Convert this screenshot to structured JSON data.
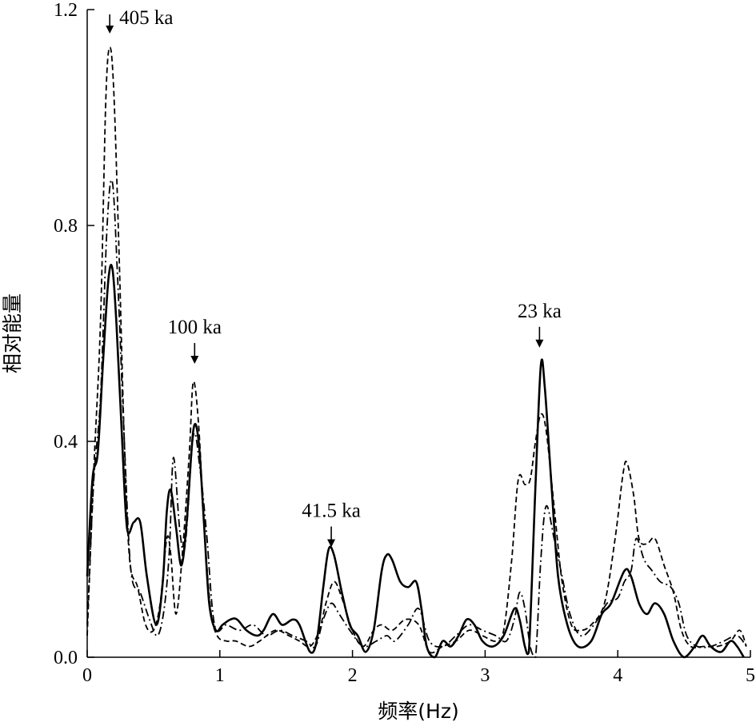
{
  "chart_data": {
    "type": "line",
    "title": "",
    "xlabel": "频率(Hz)",
    "ylabel": "相对能量",
    "xlim": [
      0,
      5
    ],
    "ylim": [
      0,
      1.2
    ],
    "x_ticks": [
      0,
      1,
      2,
      3,
      4,
      5
    ],
    "x_tick_labels": [
      "0",
      "1",
      "2",
      "3",
      "4",
      "5"
    ],
    "y_ticks": [
      0,
      0.4,
      0.8,
      1.2
    ],
    "y_tick_labels": [
      "0.0",
      "0.4",
      "0.8",
      "1.2"
    ],
    "grid": false,
    "legend": "none",
    "series": [
      {
        "style": "solid",
        "points": [
          [
            0,
            0.15
          ],
          [
            0.04,
            0.33
          ],
          [
            0.08,
            0.38
          ],
          [
            0.12,
            0.55
          ],
          [
            0.16,
            0.7
          ],
          [
            0.19,
            0.72
          ],
          [
            0.22,
            0.62
          ],
          [
            0.26,
            0.42
          ],
          [
            0.3,
            0.24
          ],
          [
            0.35,
            0.25
          ],
          [
            0.4,
            0.25
          ],
          [
            0.45,
            0.15
          ],
          [
            0.52,
            0.06
          ],
          [
            0.57,
            0.14
          ],
          [
            0.6,
            0.27
          ],
          [
            0.63,
            0.31
          ],
          [
            0.67,
            0.24
          ],
          [
            0.71,
            0.17
          ],
          [
            0.75,
            0.25
          ],
          [
            0.8,
            0.42
          ],
          [
            0.84,
            0.4
          ],
          [
            0.88,
            0.25
          ],
          [
            0.92,
            0.1
          ],
          [
            0.97,
            0.05
          ],
          [
            1.02,
            0.06
          ],
          [
            1.08,
            0.07
          ],
          [
            1.13,
            0.07
          ],
          [
            1.2,
            0.05
          ],
          [
            1.28,
            0.04
          ],
          [
            1.33,
            0.05
          ],
          [
            1.4,
            0.08
          ],
          [
            1.47,
            0.06
          ],
          [
            1.55,
            0.07
          ],
          [
            1.6,
            0.06
          ],
          [
            1.68,
            0.01
          ],
          [
            1.73,
            0.03
          ],
          [
            1.78,
            0.13
          ],
          [
            1.82,
            0.2
          ],
          [
            1.86,
            0.19
          ],
          [
            1.92,
            0.12
          ],
          [
            1.98,
            0.06
          ],
          [
            2.04,
            0.04
          ],
          [
            2.1,
            0.01
          ],
          [
            2.16,
            0.05
          ],
          [
            2.22,
            0.16
          ],
          [
            2.26,
            0.19
          ],
          [
            2.3,
            0.18
          ],
          [
            2.36,
            0.14
          ],
          [
            2.42,
            0.13
          ],
          [
            2.48,
            0.14
          ],
          [
            2.52,
            0.09
          ],
          [
            2.56,
            0.02
          ],
          [
            2.62,
            0.0
          ],
          [
            2.68,
            0.03
          ],
          [
            2.74,
            0.02
          ],
          [
            2.8,
            0.04
          ],
          [
            2.86,
            0.07
          ],
          [
            2.92,
            0.06
          ],
          [
            2.98,
            0.03
          ],
          [
            3.06,
            0.02
          ],
          [
            3.14,
            0.04
          ],
          [
            3.22,
            0.09
          ],
          [
            3.26,
            0.07
          ],
          [
            3.3,
            0.02
          ],
          [
            3.33,
            0.01
          ],
          [
            3.38,
            0.32
          ],
          [
            3.42,
            0.54
          ],
          [
            3.45,
            0.5
          ],
          [
            3.5,
            0.32
          ],
          [
            3.55,
            0.15
          ],
          [
            3.62,
            0.06
          ],
          [
            3.7,
            0.02
          ],
          [
            3.8,
            0.03
          ],
          [
            3.88,
            0.08
          ],
          [
            3.95,
            0.1
          ],
          [
            4.05,
            0.16
          ],
          [
            4.1,
            0.15
          ],
          [
            4.16,
            0.1
          ],
          [
            4.22,
            0.08
          ],
          [
            4.28,
            0.1
          ],
          [
            4.35,
            0.08
          ],
          [
            4.42,
            0.03
          ],
          [
            4.5,
            0.0
          ],
          [
            4.58,
            0.02
          ],
          [
            4.64,
            0.04
          ],
          [
            4.7,
            0.02
          ],
          [
            4.78,
            0.01
          ],
          [
            4.85,
            0.03
          ],
          [
            4.9,
            0.02
          ],
          [
            4.95,
            0.0
          ]
        ]
      },
      {
        "style": "dashed",
        "points": [
          [
            0,
            0.04
          ],
          [
            0.05,
            0.35
          ],
          [
            0.1,
            0.62
          ],
          [
            0.14,
            1.03
          ],
          [
            0.17,
            1.13
          ],
          [
            0.2,
            1.05
          ],
          [
            0.24,
            0.75
          ],
          [
            0.28,
            0.4
          ],
          [
            0.32,
            0.18
          ],
          [
            0.38,
            0.13
          ],
          [
            0.44,
            0.06
          ],
          [
            0.5,
            0.05
          ],
          [
            0.55,
            0.1
          ],
          [
            0.6,
            0.22
          ],
          [
            0.63,
            0.19
          ],
          [
            0.67,
            0.08
          ],
          [
            0.72,
            0.2
          ],
          [
            0.77,
            0.38
          ],
          [
            0.8,
            0.51
          ],
          [
            0.84,
            0.43
          ],
          [
            0.88,
            0.25
          ],
          [
            0.93,
            0.09
          ],
          [
            0.98,
            0.04
          ],
          [
            1.05,
            0.03
          ],
          [
            1.12,
            0.03
          ],
          [
            1.22,
            0.02
          ],
          [
            1.3,
            0.03
          ],
          [
            1.42,
            0.05
          ],
          [
            1.52,
            0.04
          ],
          [
            1.6,
            0.03
          ],
          [
            1.68,
            0.02
          ],
          [
            1.75,
            0.05
          ],
          [
            1.8,
            0.1
          ],
          [
            1.86,
            0.14
          ],
          [
            1.92,
            0.11
          ],
          [
            2.0,
            0.05
          ],
          [
            2.08,
            0.02
          ],
          [
            2.16,
            0.05
          ],
          [
            2.22,
            0.06
          ],
          [
            2.3,
            0.05
          ],
          [
            2.4,
            0.07
          ],
          [
            2.5,
            0.06
          ],
          [
            2.58,
            0.01
          ],
          [
            2.68,
            0.02
          ],
          [
            2.78,
            0.03
          ],
          [
            2.88,
            0.05
          ],
          [
            2.98,
            0.04
          ],
          [
            3.08,
            0.03
          ],
          [
            3.14,
            0.05
          ],
          [
            3.2,
            0.18
          ],
          [
            3.25,
            0.33
          ],
          [
            3.3,
            0.32
          ],
          [
            3.34,
            0.33
          ],
          [
            3.38,
            0.4
          ],
          [
            3.42,
            0.45
          ],
          [
            3.46,
            0.42
          ],
          [
            3.52,
            0.28
          ],
          [
            3.58,
            0.14
          ],
          [
            3.65,
            0.06
          ],
          [
            3.72,
            0.05
          ],
          [
            3.8,
            0.06
          ],
          [
            3.9,
            0.1
          ],
          [
            3.98,
            0.22
          ],
          [
            4.04,
            0.34
          ],
          [
            4.07,
            0.36
          ],
          [
            4.12,
            0.3
          ],
          [
            4.16,
            0.22
          ],
          [
            4.22,
            0.21
          ],
          [
            4.28,
            0.22
          ],
          [
            4.35,
            0.17
          ],
          [
            4.42,
            0.12
          ],
          [
            4.48,
            0.05
          ],
          [
            4.55,
            0.02
          ],
          [
            4.65,
            0.02
          ],
          [
            4.75,
            0.02
          ],
          [
            4.85,
            0.03
          ],
          [
            4.92,
            0.05
          ],
          [
            4.97,
            0.02
          ]
        ]
      },
      {
        "style": "dashdot",
        "points": [
          [
            0,
            0.06
          ],
          [
            0.05,
            0.33
          ],
          [
            0.1,
            0.48
          ],
          [
            0.15,
            0.8
          ],
          [
            0.19,
            0.88
          ],
          [
            0.23,
            0.7
          ],
          [
            0.28,
            0.4
          ],
          [
            0.33,
            0.16
          ],
          [
            0.4,
            0.12
          ],
          [
            0.47,
            0.07
          ],
          [
            0.53,
            0.04
          ],
          [
            0.58,
            0.09
          ],
          [
            0.62,
            0.2
          ],
          [
            0.65,
            0.37
          ],
          [
            0.7,
            0.23
          ],
          [
            0.74,
            0.21
          ],
          [
            0.8,
            0.41
          ],
          [
            0.85,
            0.35
          ],
          [
            0.9,
            0.23
          ],
          [
            0.96,
            0.06
          ],
          [
            1.05,
            0.06
          ],
          [
            1.15,
            0.05
          ],
          [
            1.25,
            0.06
          ],
          [
            1.35,
            0.04
          ],
          [
            1.45,
            0.05
          ],
          [
            1.55,
            0.04
          ],
          [
            1.65,
            0.03
          ],
          [
            1.72,
            0.02
          ],
          [
            1.78,
            0.07
          ],
          [
            1.84,
            0.1
          ],
          [
            1.9,
            0.08
          ],
          [
            1.98,
            0.05
          ],
          [
            2.08,
            0.02
          ],
          [
            2.18,
            0.03
          ],
          [
            2.26,
            0.04
          ],
          [
            2.32,
            0.03
          ],
          [
            2.42,
            0.06
          ],
          [
            2.5,
            0.09
          ],
          [
            2.58,
            0.03
          ],
          [
            2.68,
            0.02
          ],
          [
            2.78,
            0.04
          ],
          [
            2.88,
            0.06
          ],
          [
            2.98,
            0.05
          ],
          [
            3.08,
            0.04
          ],
          [
            3.16,
            0.03
          ],
          [
            3.22,
            0.07
          ],
          [
            3.26,
            0.12
          ],
          [
            3.3,
            0.09
          ],
          [
            3.34,
            0.02
          ],
          [
            3.38,
            0.0
          ],
          [
            3.42,
            0.18
          ],
          [
            3.46,
            0.28
          ],
          [
            3.52,
            0.22
          ],
          [
            3.58,
            0.15
          ],
          [
            3.64,
            0.08
          ],
          [
            3.72,
            0.04
          ],
          [
            3.82,
            0.06
          ],
          [
            3.92,
            0.1
          ],
          [
            4.0,
            0.11
          ],
          [
            4.05,
            0.14
          ],
          [
            4.1,
            0.16
          ],
          [
            4.14,
            0.22
          ],
          [
            4.2,
            0.18
          ],
          [
            4.26,
            0.16
          ],
          [
            4.32,
            0.14
          ],
          [
            4.4,
            0.13
          ],
          [
            4.46,
            0.1
          ],
          [
            4.52,
            0.04
          ],
          [
            4.6,
            0.02
          ],
          [
            4.7,
            0.02
          ],
          [
            4.8,
            0.03
          ],
          [
            4.9,
            0.04
          ],
          [
            4.97,
            0.02
          ]
        ]
      }
    ],
    "annotations": [
      {
        "text": "405 ka",
        "x": 0.17,
        "y": 1.2
      },
      {
        "text": "100 ka",
        "x": 0.81,
        "y": 0.6
      },
      {
        "text": "41.5 ka",
        "x": 1.84,
        "y": 0.26
      },
      {
        "text": "23 ka",
        "x": 3.41,
        "y": 0.63
      }
    ]
  }
}
